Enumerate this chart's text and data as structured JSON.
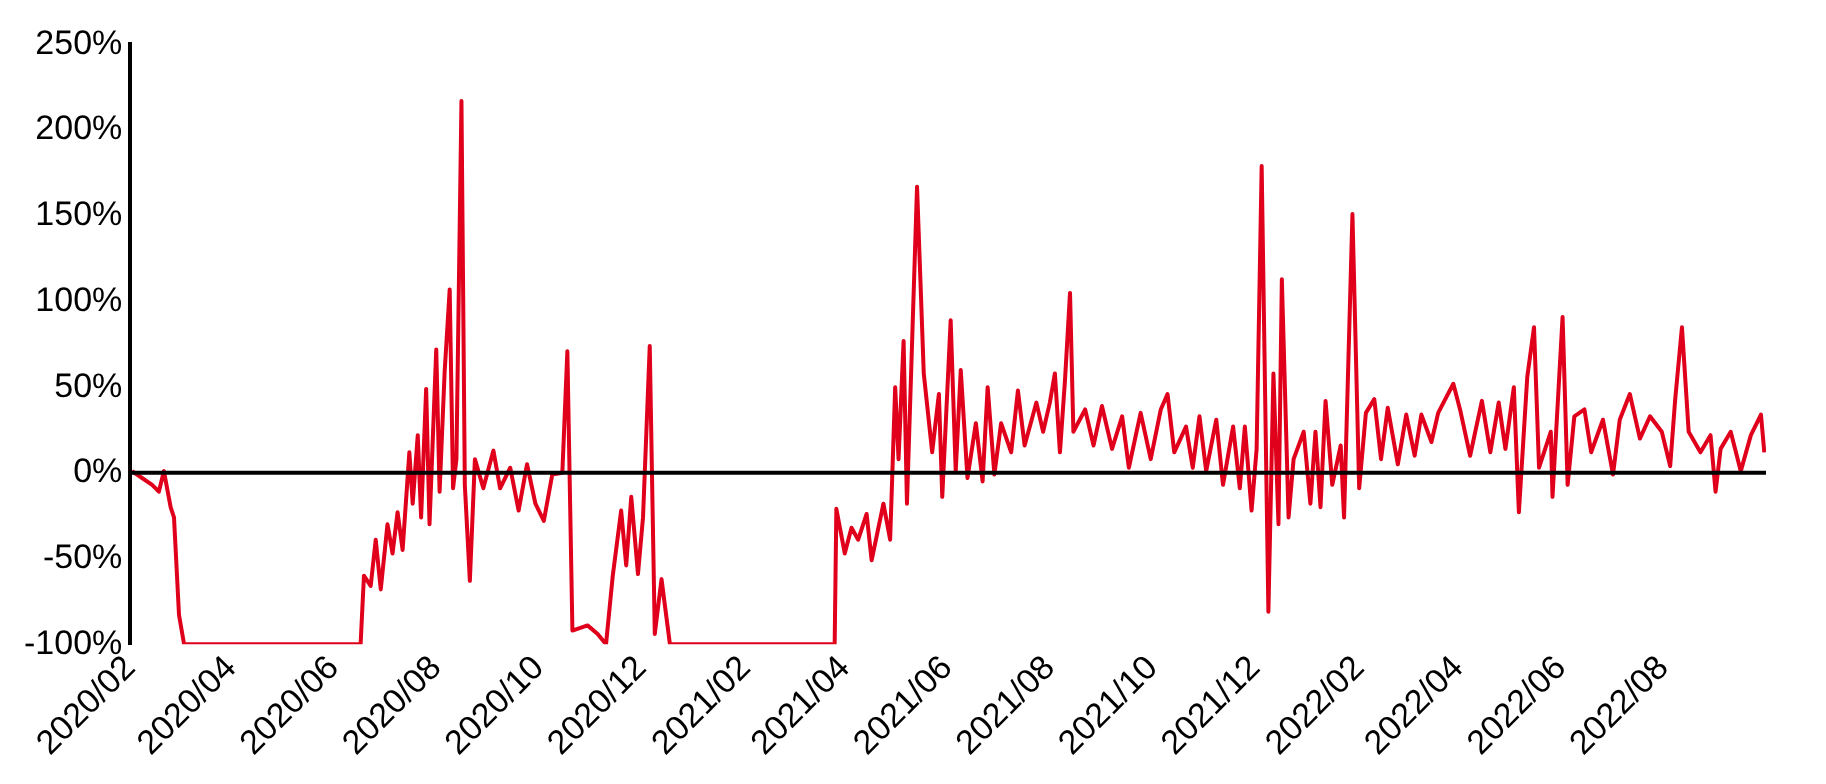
{
  "chart_data": {
    "type": "line",
    "x": [
      "2020-02-02",
      "2020-02-08",
      "2020-02-14",
      "2020-02-18",
      "2020-02-21",
      "2020-02-25",
      "2020-02-27",
      "2020-03-01",
      "2020-03-04",
      "2020-04-25",
      "2020-06-17",
      "2020-06-19",
      "2020-06-23",
      "2020-06-26",
      "2020-06-29",
      "2020-07-03",
      "2020-07-06",
      "2020-07-09",
      "2020-07-12",
      "2020-07-16",
      "2020-07-18",
      "2020-07-21",
      "2020-07-23",
      "2020-07-26",
      "2020-07-28",
      "2020-08-01",
      "2020-08-03",
      "2020-08-06",
      "2020-08-09",
      "2020-08-11",
      "2020-08-13",
      "2020-08-16",
      "2020-08-18",
      "2020-08-21",
      "2020-08-24",
      "2020-08-29",
      "2020-09-04",
      "2020-09-08",
      "2020-09-14",
      "2020-09-19",
      "2020-09-24",
      "2020-09-29",
      "2020-10-04",
      "2020-10-09",
      "2020-10-15",
      "2020-10-18",
      "2020-10-21",
      "2020-10-30",
      "2020-11-05",
      "2020-11-10",
      "2020-11-14",
      "2020-11-19",
      "2020-11-22",
      "2020-11-25",
      "2020-11-29",
      "2020-12-02",
      "2020-12-06",
      "2020-12-09",
      "2020-12-13",
      "2020-12-18",
      "2021-03-26",
      "2021-03-27",
      "2021-04-01",
      "2021-04-05",
      "2021-04-09",
      "2021-04-14",
      "2021-04-17",
      "2021-04-24",
      "2021-04-28",
      "2021-05-01",
      "2021-05-03",
      "2021-05-06",
      "2021-05-08",
      "2021-05-14",
      "2021-05-18",
      "2021-05-23",
      "2021-05-27",
      "2021-05-29",
      "2021-06-03",
      "2021-06-06",
      "2021-06-09",
      "2021-06-13",
      "2021-06-18",
      "2021-06-22",
      "2021-06-25",
      "2021-06-29",
      "2021-07-03",
      "2021-07-09",
      "2021-07-13",
      "2021-07-17",
      "2021-07-24",
      "2021-07-28",
      "2021-08-01",
      "2021-08-04",
      "2021-08-07",
      "2021-08-10",
      "2021-08-13",
      "2021-08-15",
      "2021-08-22",
      "2021-08-27",
      "2021-09-01",
      "2021-09-07",
      "2021-09-13",
      "2021-09-17",
      "2021-09-24",
      "2021-09-30",
      "2021-10-06",
      "2021-10-10",
      "2021-10-14",
      "2021-10-21",
      "2021-10-25",
      "2021-10-29",
      "2021-11-02",
      "2021-11-08",
      "2021-11-12",
      "2021-11-18",
      "2021-11-22",
      "2021-11-25",
      "2021-11-29",
      "2021-12-02",
      "2021-12-05",
      "2021-12-09",
      "2021-12-12",
      "2021-12-15",
      "2021-12-17",
      "2021-12-21",
      "2021-12-24",
      "2021-12-30",
      "2022-01-03",
      "2022-01-06",
      "2022-01-09",
      "2022-01-12",
      "2022-01-16",
      "2022-01-21",
      "2022-01-23",
      "2022-01-28",
      "2022-02-01",
      "2022-02-05",
      "2022-02-10",
      "2022-02-14",
      "2022-02-18",
      "2022-02-24",
      "2022-03-01",
      "2022-03-06",
      "2022-03-10",
      "2022-03-16",
      "2022-03-20",
      "2022-03-29",
      "2022-04-02",
      "2022-04-08",
      "2022-04-15",
      "2022-04-20",
      "2022-04-25",
      "2022-04-29",
      "2022-05-04",
      "2022-05-07",
      "2022-05-12",
      "2022-05-16",
      "2022-05-19",
      "2022-05-26",
      "2022-05-27",
      "2022-06-02",
      "2022-06-05",
      "2022-06-09",
      "2022-06-15",
      "2022-06-19",
      "2022-06-26",
      "2022-07-02",
      "2022-07-06",
      "2022-07-12",
      "2022-07-18",
      "2022-07-24",
      "2022-07-31",
      "2022-08-05",
      "2022-08-08",
      "2022-08-12",
      "2022-08-16",
      "2022-08-23",
      "2022-08-29",
      "2022-09-01",
      "2022-09-04",
      "2022-09-10",
      "2022-09-16",
      "2022-09-22",
      "2022-09-28",
      "2022-09-30"
    ],
    "series": [
      {
        "color": "#e0001b",
        "values": [
          1,
          -3,
          -7,
          -11,
          1,
          -20,
          -26,
          -83,
          -100,
          -100,
          -100,
          -60,
          -66,
          -39,
          -68,
          -30,
          -47,
          -23,
          -45,
          12,
          -18,
          22,
          -26,
          49,
          -30,
          72,
          -11,
          59,
          107,
          -9,
          8,
          217,
          -7,
          -63,
          8,
          -9,
          13,
          -9,
          3,
          -22,
          5,
          -18,
          -28,
          -1,
          0,
          71,
          -92,
          -89,
          -94,
          -100,
          -60,
          -22,
          -54,
          -14,
          -59,
          -26,
          74,
          -94,
          -62,
          -100,
          -100,
          -21,
          -47,
          -32,
          -39,
          -24,
          -51,
          -18,
          -39,
          50,
          8,
          77,
          -18,
          167,
          58,
          12,
          46,
          -14,
          89,
          1,
          60,
          -3,
          29,
          -5,
          50,
          -1,
          29,
          12,
          48,
          16,
          41,
          24,
          41,
          58,
          12,
          54,
          105,
          24,
          37,
          16,
          39,
          14,
          33,
          3,
          35,
          8,
          37,
          46,
          12,
          27,
          3,
          33,
          1,
          31,
          -7,
          27,
          -9,
          27,
          -22,
          14,
          179,
          -81,
          58,
          -30,
          113,
          -26,
          8,
          24,
          -18,
          24,
          -20,
          42,
          -7,
          16,
          -26,
          151,
          -9,
          35,
          43,
          8,
          38,
          5,
          34,
          10,
          34,
          18,
          35,
          52,
          37,
          10,
          42,
          12,
          41,
          14,
          50,
          -23,
          56,
          85,
          3,
          24,
          -14,
          91,
          -7,
          33,
          37,
          12,
          31,
          -1,
          31,
          46,
          20,
          33,
          24,
          4,
          43,
          85,
          24,
          12,
          22,
          -11,
          14,
          24,
          1,
          22,
          34,
          12
        ]
      }
    ],
    "xlim": [
      "2020-02-01",
      "2022-10-01"
    ],
    "xticks": [
      {
        "value": "2020-02",
        "label": "2020/02"
      },
      {
        "value": "2020-04",
        "label": "2020/04"
      },
      {
        "value": "2020-06",
        "label": "2020/06"
      },
      {
        "value": "2020-08",
        "label": "2020/08"
      },
      {
        "value": "2020-10",
        "label": "2020/10"
      },
      {
        "value": "2020-12",
        "label": "2020/12"
      },
      {
        "value": "2021-02",
        "label": "2021/02"
      },
      {
        "value": "2021-04",
        "label": "2021/04"
      },
      {
        "value": "2021-06",
        "label": "2021/06"
      },
      {
        "value": "2021-08",
        "label": "2021/08"
      },
      {
        "value": "2021-10",
        "label": "2021/10"
      },
      {
        "value": "2021-12",
        "label": "2021/12"
      },
      {
        "value": "2022-02",
        "label": "2022/02"
      },
      {
        "value": "2022-04",
        "label": "2022/04"
      },
      {
        "value": "2022-06",
        "label": "2022/06"
      },
      {
        "value": "2022-08",
        "label": "2022/08"
      }
    ],
    "ylim": [
      -100,
      250
    ],
    "yticks": [
      {
        "value": -100,
        "label": "-100%"
      },
      {
        "value": -50,
        "label": "-50%"
      },
      {
        "value": 0,
        "label": "0%"
      },
      {
        "value": 50,
        "label": "50%"
      },
      {
        "value": 100,
        "label": "100%"
      },
      {
        "value": 150,
        "label": "150%"
      },
      {
        "value": 200,
        "label": "200%"
      },
      {
        "value": 250,
        "label": "250%"
      }
    ],
    "ref_lines": [
      {
        "axis": "y",
        "value": 0,
        "color": "#000000"
      }
    ],
    "grid": false,
    "legend": false
  }
}
